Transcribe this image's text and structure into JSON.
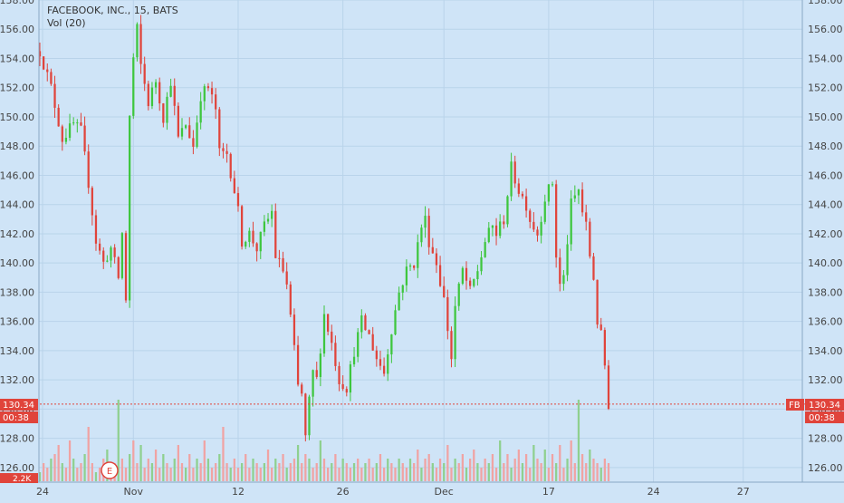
{
  "legend": {
    "title": "FACEBOOK, INC., 15, BATS",
    "volume": "Vol (20)"
  },
  "colors": {
    "background": "#cfe4f7",
    "grid": "#b9d3ea",
    "up": "#3ec63e",
    "down": "#e0443b",
    "price_line": "#e0443b",
    "vol_up": "#8fd08f",
    "vol_down": "#f0a3a3"
  },
  "price_badge": {
    "left_value": "130.34",
    "left_timer": "00:38",
    "right_symbol": "FB",
    "right_value": "130.34",
    "right_timer": "00:38"
  },
  "volume_axis_label": "2.2K",
  "earnings_marker": "E",
  "chart_data": {
    "type": "candlestick",
    "title": "FACEBOOK, INC., 15, BATS",
    "xlabel": "",
    "ylabel": "",
    "ylim": [
      125,
      158
    ],
    "y_ticks": [
      "126.00",
      "128.00",
      "130.00",
      "132.00",
      "134.00",
      "136.00",
      "138.00",
      "140.00",
      "142.00",
      "144.00",
      "146.00",
      "148.00",
      "150.00",
      "152.00",
      "154.00",
      "156.00",
      "158.00"
    ],
    "x_ticks": [
      "24",
      "Nov",
      "12",
      "26",
      "Dec",
      "17",
      "24",
      "27"
    ],
    "last_price": 130.34,
    "series": [
      {
        "name": "Price",
        "path": [
          [
            0,
            154.5
          ],
          [
            3,
            152.0
          ],
          [
            6,
            148.5
          ],
          [
            9,
            149.5
          ],
          [
            11,
            149.0
          ],
          [
            13,
            145.5
          ],
          [
            15,
            141.5
          ],
          [
            17,
            140.0
          ],
          [
            19,
            141.0
          ],
          [
            21,
            139.0
          ],
          [
            22,
            142.0
          ],
          [
            23,
            137.5
          ],
          [
            24,
            150.0
          ],
          [
            25,
            154.0
          ],
          [
            26,
            156.0
          ],
          [
            27,
            153.5
          ],
          [
            29,
            151.0
          ],
          [
            31,
            152.5
          ],
          [
            33,
            150.0
          ],
          [
            35,
            152.5
          ],
          [
            37,
            148.5
          ],
          [
            39,
            149.5
          ],
          [
            41,
            148.0
          ],
          [
            43,
            151.5
          ],
          [
            45,
            152.0
          ],
          [
            47,
            150.5
          ],
          [
            48,
            147.5
          ],
          [
            50,
            147.5
          ],
          [
            52,
            145.0
          ],
          [
            53,
            143.5
          ],
          [
            54,
            141.5
          ],
          [
            56,
            142.0
          ],
          [
            58,
            141.0
          ],
          [
            60,
            142.5
          ],
          [
            62,
            143.5
          ],
          [
            63,
            140.5
          ],
          [
            65,
            139.5
          ],
          [
            66,
            138.5
          ],
          [
            68,
            134.0
          ],
          [
            69,
            131.5
          ],
          [
            70,
            131.0
          ],
          [
            71,
            128.0
          ],
          [
            72,
            130.5
          ],
          [
            73,
            132.5
          ],
          [
            74,
            132.0
          ],
          [
            76,
            136.5
          ],
          [
            78,
            134.5
          ],
          [
            80,
            132.0
          ],
          [
            82,
            131.5
          ],
          [
            84,
            134.0
          ],
          [
            86,
            136.0
          ],
          [
            88,
            135.0
          ],
          [
            90,
            133.5
          ],
          [
            92,
            132.5
          ],
          [
            94,
            135.5
          ],
          [
            96,
            138.0
          ],
          [
            98,
            139.5
          ],
          [
            100,
            140.0
          ],
          [
            102,
            142.5
          ],
          [
            103,
            143.0
          ],
          [
            104,
            141.5
          ],
          [
            106,
            140.0
          ],
          [
            108,
            137.5
          ],
          [
            110,
            133.5
          ],
          [
            111,
            137.0
          ],
          [
            113,
            139.5
          ],
          [
            115,
            138.0
          ],
          [
            117,
            139.5
          ],
          [
            119,
            141.5
          ],
          [
            121,
            142.5
          ],
          [
            122,
            142.0
          ],
          [
            124,
            143.0
          ],
          [
            126,
            146.5
          ],
          [
            128,
            145.0
          ],
          [
            130,
            144.0
          ],
          [
            131,
            143.0
          ],
          [
            133,
            142.0
          ],
          [
            135,
            144.5
          ],
          [
            137,
            145.5
          ],
          [
            138,
            140.5
          ],
          [
            139,
            138.5
          ],
          [
            140,
            139.0
          ],
          [
            141,
            141.5
          ],
          [
            142,
            144.0
          ],
          [
            144,
            145.0
          ],
          [
            145,
            143.5
          ],
          [
            146,
            142.5
          ],
          [
            147,
            140.5
          ],
          [
            148,
            139.0
          ],
          [
            149,
            136.0
          ],
          [
            150,
            135.0
          ],
          [
            151,
            133.0
          ],
          [
            152,
            130.34
          ]
        ]
      }
    ],
    "volume": {
      "name": "Vol (20)",
      "values": [
        2,
        4,
        3,
        5,
        6,
        8,
        4,
        3,
        9,
        5,
        3,
        4,
        6,
        12,
        4,
        2,
        3,
        5,
        7,
        3,
        4,
        18,
        5,
        3,
        6,
        9,
        4,
        8,
        3,
        5,
        4,
        7,
        3,
        6,
        4,
        3,
        5,
        8,
        4,
        3,
        6,
        3,
        5,
        4,
        9,
        5,
        3,
        4,
        6,
        12,
        4,
        3,
        5,
        3,
        4,
        6,
        3,
        5,
        4,
        3,
        4,
        7,
        3,
        5,
        4,
        6,
        3,
        4,
        5,
        8,
        4,
        6,
        5,
        3,
        4,
        9,
        5,
        3,
        4,
        6,
        3,
        5,
        4,
        3,
        4,
        5,
        3,
        4,
        5,
        3,
        4,
        6,
        3,
        5,
        4,
        3,
        5,
        4,
        3,
        5,
        4,
        7,
        3,
        5,
        6,
        4,
        3,
        5,
        4,
        8,
        3,
        5,
        4,
        6,
        3,
        5,
        7,
        4,
        3,
        5,
        4,
        6,
        3,
        9,
        4,
        6,
        3,
        5,
        7,
        4,
        6,
        3,
        8,
        5,
        4,
        7,
        3,
        6,
        4,
        8,
        3,
        5,
        9,
        4,
        18,
        6,
        4,
        7,
        5,
        4,
        3,
        5,
        4
      ]
    }
  }
}
